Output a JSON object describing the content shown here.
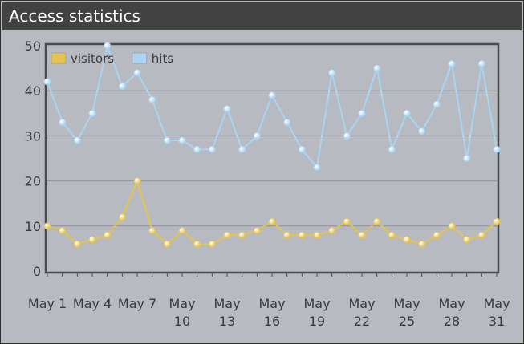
{
  "widget": {
    "title": "Access statistics"
  },
  "chart_data": {
    "type": "line",
    "title": "",
    "xlabel": "",
    "ylabel": "",
    "ylim": [
      0,
      50
    ],
    "yticks": [
      0,
      10,
      20,
      30,
      40,
      50
    ],
    "x": [
      1,
      2,
      3,
      4,
      5,
      6,
      7,
      8,
      9,
      10,
      11,
      12,
      13,
      14,
      15,
      16,
      17,
      18,
      19,
      20,
      21,
      22,
      23,
      24,
      25,
      26,
      27,
      28,
      29,
      30,
      31
    ],
    "x_tick_values": [
      1,
      4,
      7,
      10,
      13,
      16,
      19,
      22,
      25,
      28,
      31
    ],
    "x_tick_labels": [
      [
        "May 1"
      ],
      [
        "May 4"
      ],
      [
        "May 7"
      ],
      [
        "May",
        "10"
      ],
      [
        "May",
        "13"
      ],
      [
        "May",
        "16"
      ],
      [
        "May",
        "19"
      ],
      [
        "May",
        "22"
      ],
      [
        "May",
        "25"
      ],
      [
        "May",
        "28"
      ],
      [
        "May",
        "31"
      ]
    ],
    "grid": true,
    "legend_position": "top-left",
    "series": [
      {
        "name": "visitors",
        "color": "#e6c34a",
        "values": [
          10,
          9,
          6,
          7,
          8,
          12,
          20,
          9,
          6,
          9,
          6,
          6,
          8,
          8,
          9,
          11,
          8,
          8,
          8,
          9,
          11,
          8,
          11,
          8,
          7,
          6,
          8,
          10,
          7,
          8,
          11
        ]
      },
      {
        "name": "hits",
        "color": "#a9d4f2",
        "values": [
          42,
          33,
          29,
          35,
          50,
          41,
          44,
          38,
          29,
          29,
          27,
          27,
          36,
          27,
          30,
          39,
          33,
          27,
          23,
          44,
          30,
          35,
          45,
          27,
          35,
          31,
          37,
          46,
          25,
          46,
          27
        ]
      }
    ]
  }
}
